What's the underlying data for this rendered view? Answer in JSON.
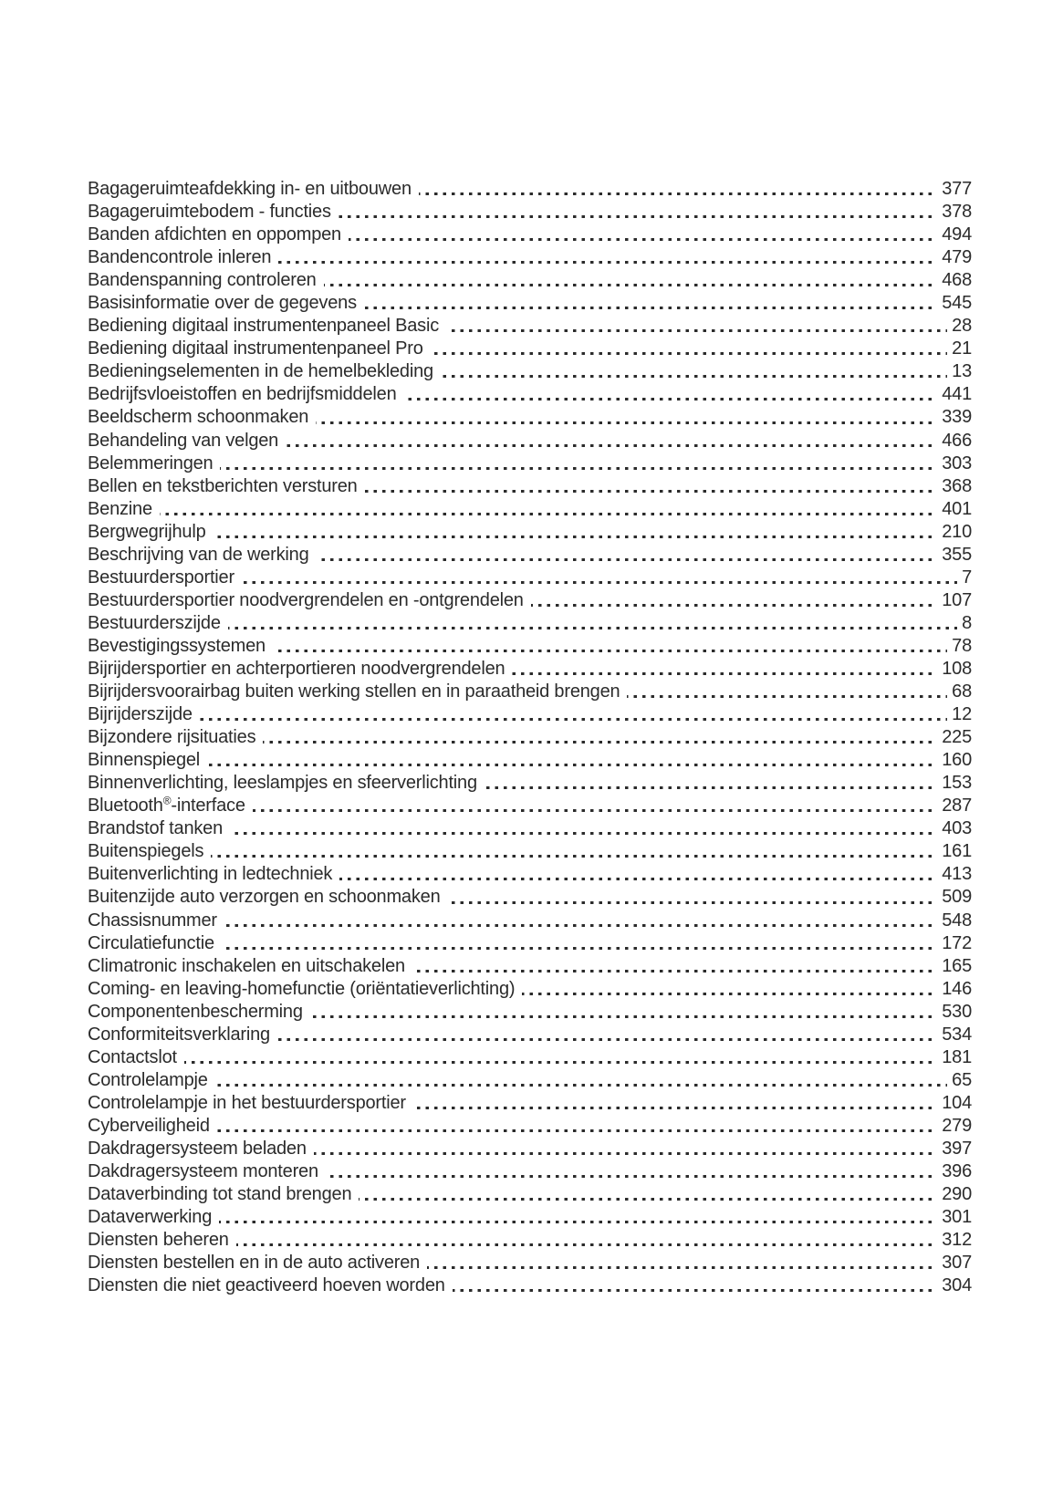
{
  "page": {
    "background": "#ffffff",
    "text_color": "#2b2b2b"
  },
  "index": {
    "entries": [
      {
        "label": "Bagageruimteafdekking in- en uitbouwen",
        "page": "377"
      },
      {
        "label": "Bagageruimtebodem - functies",
        "page": "378"
      },
      {
        "label": "Banden afdichten en oppompen",
        "page": "494"
      },
      {
        "label": "Bandencontrole inleren",
        "page": "479"
      },
      {
        "label": "Bandenspanning controleren",
        "page": "468"
      },
      {
        "label": "Basisinformatie over de gegevens",
        "page": "545"
      },
      {
        "label": "Bediening digitaal instrumentenpaneel Basic",
        "page": "28"
      },
      {
        "label": "Bediening digitaal instrumentenpaneel Pro",
        "page": "21"
      },
      {
        "label": "Bedieningselementen in de hemelbekleding",
        "page": "13"
      },
      {
        "label": "Bedrijfsvloeistoffen en bedrijfsmiddelen",
        "page": "441"
      },
      {
        "label": "Beeldscherm schoonmaken",
        "page": "339"
      },
      {
        "label": "Behandeling van velgen",
        "page": "466"
      },
      {
        "label": "Belemmeringen",
        "page": "303"
      },
      {
        "label": "Bellen en tekstberichten versturen",
        "page": "368"
      },
      {
        "label": "Benzine",
        "page": "401"
      },
      {
        "label": "Bergwegrijhulp",
        "page": "210"
      },
      {
        "label": "Beschrijving van de werking",
        "page": "355"
      },
      {
        "label": "Bestuurdersportier",
        "page": "7"
      },
      {
        "label": "Bestuurdersportier noodvergrendelen en -ontgrendelen",
        "page": "107"
      },
      {
        "label": "Bestuurderszijde",
        "page": "8"
      },
      {
        "label": "Bevestigingssystemen",
        "page": "78"
      },
      {
        "label": "Bijrijdersportier en achterportieren noodvergrendelen",
        "page": "108"
      },
      {
        "label": "Bijrijdersvoorairbag buiten werking stellen en in paraatheid brengen",
        "page": "68"
      },
      {
        "label": "Bijrijderszijde",
        "page": "12"
      },
      {
        "label": "Bijzondere rijsituaties",
        "page": "225"
      },
      {
        "label": "Binnenspiegel",
        "page": "160"
      },
      {
        "label": "Binnenverlichting, leeslampjes en sfeerverlichting",
        "page": "153"
      },
      {
        "label": "Bluetooth®-interface",
        "page": "287"
      },
      {
        "label": "Brandstof tanken",
        "page": "403"
      },
      {
        "label": "Buitenspiegels",
        "page": "161"
      },
      {
        "label": "Buitenverlichting in ledtechniek",
        "page": "413"
      },
      {
        "label": "Buitenzijde auto verzorgen en schoonmaken",
        "page": "509"
      },
      {
        "label": "Chassisnummer",
        "page": "548"
      },
      {
        "label": "Circulatiefunctie",
        "page": "172"
      },
      {
        "label": "Climatronic inschakelen en uitschakelen",
        "page": "165"
      },
      {
        "label": "Coming- en leaving-homefunctie (oriëntatieverlichting)",
        "page": "146"
      },
      {
        "label": "Componentenbescherming",
        "page": "530"
      },
      {
        "label": "Conformiteitsverklaring",
        "page": "534"
      },
      {
        "label": "Contactslot",
        "page": "181"
      },
      {
        "label": "Controlelampje",
        "page": "65"
      },
      {
        "label": "Controlelampje in het bestuurdersportier",
        "page": "104"
      },
      {
        "label": "Cyberveiligheid",
        "page": "279"
      },
      {
        "label": "Dakdragersysteem beladen",
        "page": "397"
      },
      {
        "label": "Dakdragersysteem monteren",
        "page": "396"
      },
      {
        "label": "Dataverbinding tot stand brengen",
        "page": "290"
      },
      {
        "label": "Dataverwerking",
        "page": "301"
      },
      {
        "label": "Diensten beheren",
        "page": "312"
      },
      {
        "label": "Diensten bestellen en in de auto activeren",
        "page": "307"
      },
      {
        "label": "Diensten die niet geactiveerd hoeven worden",
        "page": "304"
      }
    ]
  }
}
